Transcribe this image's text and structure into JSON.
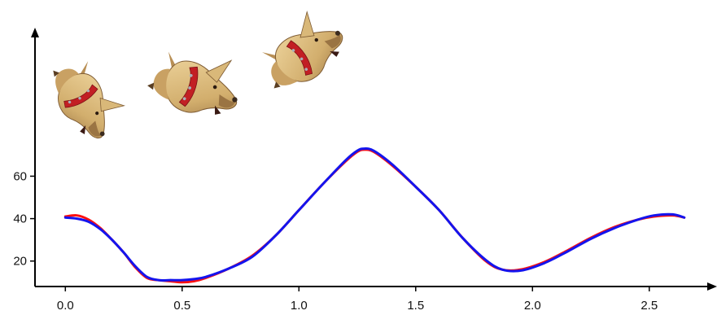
{
  "chart_data": {
    "type": "line",
    "title": "",
    "xlabel": "",
    "ylabel": "",
    "xlim": [
      -0.13,
      2.79
    ],
    "ylim": [
      8,
      130
    ],
    "x_ticks": [
      0.0,
      0.5,
      1.0,
      1.5,
      2.0,
      2.5
    ],
    "x_tick_labels": [
      "0.0",
      "0.5",
      "1.0",
      "1.5",
      "2.0",
      "2.5"
    ],
    "y_ticks": [
      20,
      40,
      60
    ],
    "y_tick_labels": [
      "20",
      "40",
      "60"
    ],
    "grid": false,
    "legend": "none",
    "series": [
      {
        "color": "#ff1010",
        "x": [
          0.0,
          0.05,
          0.1,
          0.15,
          0.2,
          0.25,
          0.3,
          0.35,
          0.4,
          0.45,
          0.5,
          0.55,
          0.6,
          0.7,
          0.8,
          0.9,
          1.0,
          1.1,
          1.2,
          1.25,
          1.28,
          1.32,
          1.4,
          1.5,
          1.6,
          1.7,
          1.8,
          1.87,
          1.95,
          2.05,
          2.15,
          2.25,
          2.35,
          2.45,
          2.52,
          2.6,
          2.65
        ],
        "y": [
          41,
          41.5,
          39.5,
          35.5,
          30,
          24,
          17,
          12,
          11,
          10.5,
          10,
          10.5,
          12,
          16.5,
          22.5,
          32,
          44,
          56,
          67,
          71.5,
          72.5,
          71.5,
          65,
          55,
          44,
          31,
          20,
          16,
          16,
          19.5,
          25,
          31,
          36,
          39.5,
          41,
          41.5,
          40.5
        ]
      },
      {
        "color": "#1414ee",
        "x": [
          0.0,
          0.05,
          0.1,
          0.15,
          0.2,
          0.25,
          0.3,
          0.35,
          0.4,
          0.45,
          0.5,
          0.55,
          0.6,
          0.7,
          0.8,
          0.9,
          1.0,
          1.1,
          1.2,
          1.25,
          1.28,
          1.32,
          1.4,
          1.5,
          1.6,
          1.7,
          1.8,
          1.87,
          1.95,
          2.05,
          2.15,
          2.25,
          2.35,
          2.45,
          2.52,
          2.6,
          2.65
        ],
        "y": [
          40.5,
          40,
          38.5,
          35,
          30,
          24,
          17.5,
          12.5,
          11,
          11,
          11,
          11.5,
          12.5,
          16.5,
          22,
          32,
          44,
          56,
          67.5,
          72,
          73,
          72,
          65.5,
          55,
          44,
          31,
          20.5,
          16,
          15.5,
          19,
          24.5,
          30.5,
          35.5,
          39.5,
          41.5,
          42,
          40.5
        ]
      }
    ]
  },
  "figures": [
    {
      "icon": "dog-head-icon",
      "kind": "illustration",
      "colors": {
        "fur": "#d9b879",
        "shade": "#9a7443",
        "collar": "#c21f24",
        "spike": "#aab0b8",
        "nose": "#3a2a1e"
      }
    },
    {
      "icon": "dog-head-icon",
      "kind": "illustration"
    },
    {
      "icon": "dog-head-icon",
      "kind": "illustration"
    }
  ],
  "colors": {
    "axis": "#000000"
  }
}
